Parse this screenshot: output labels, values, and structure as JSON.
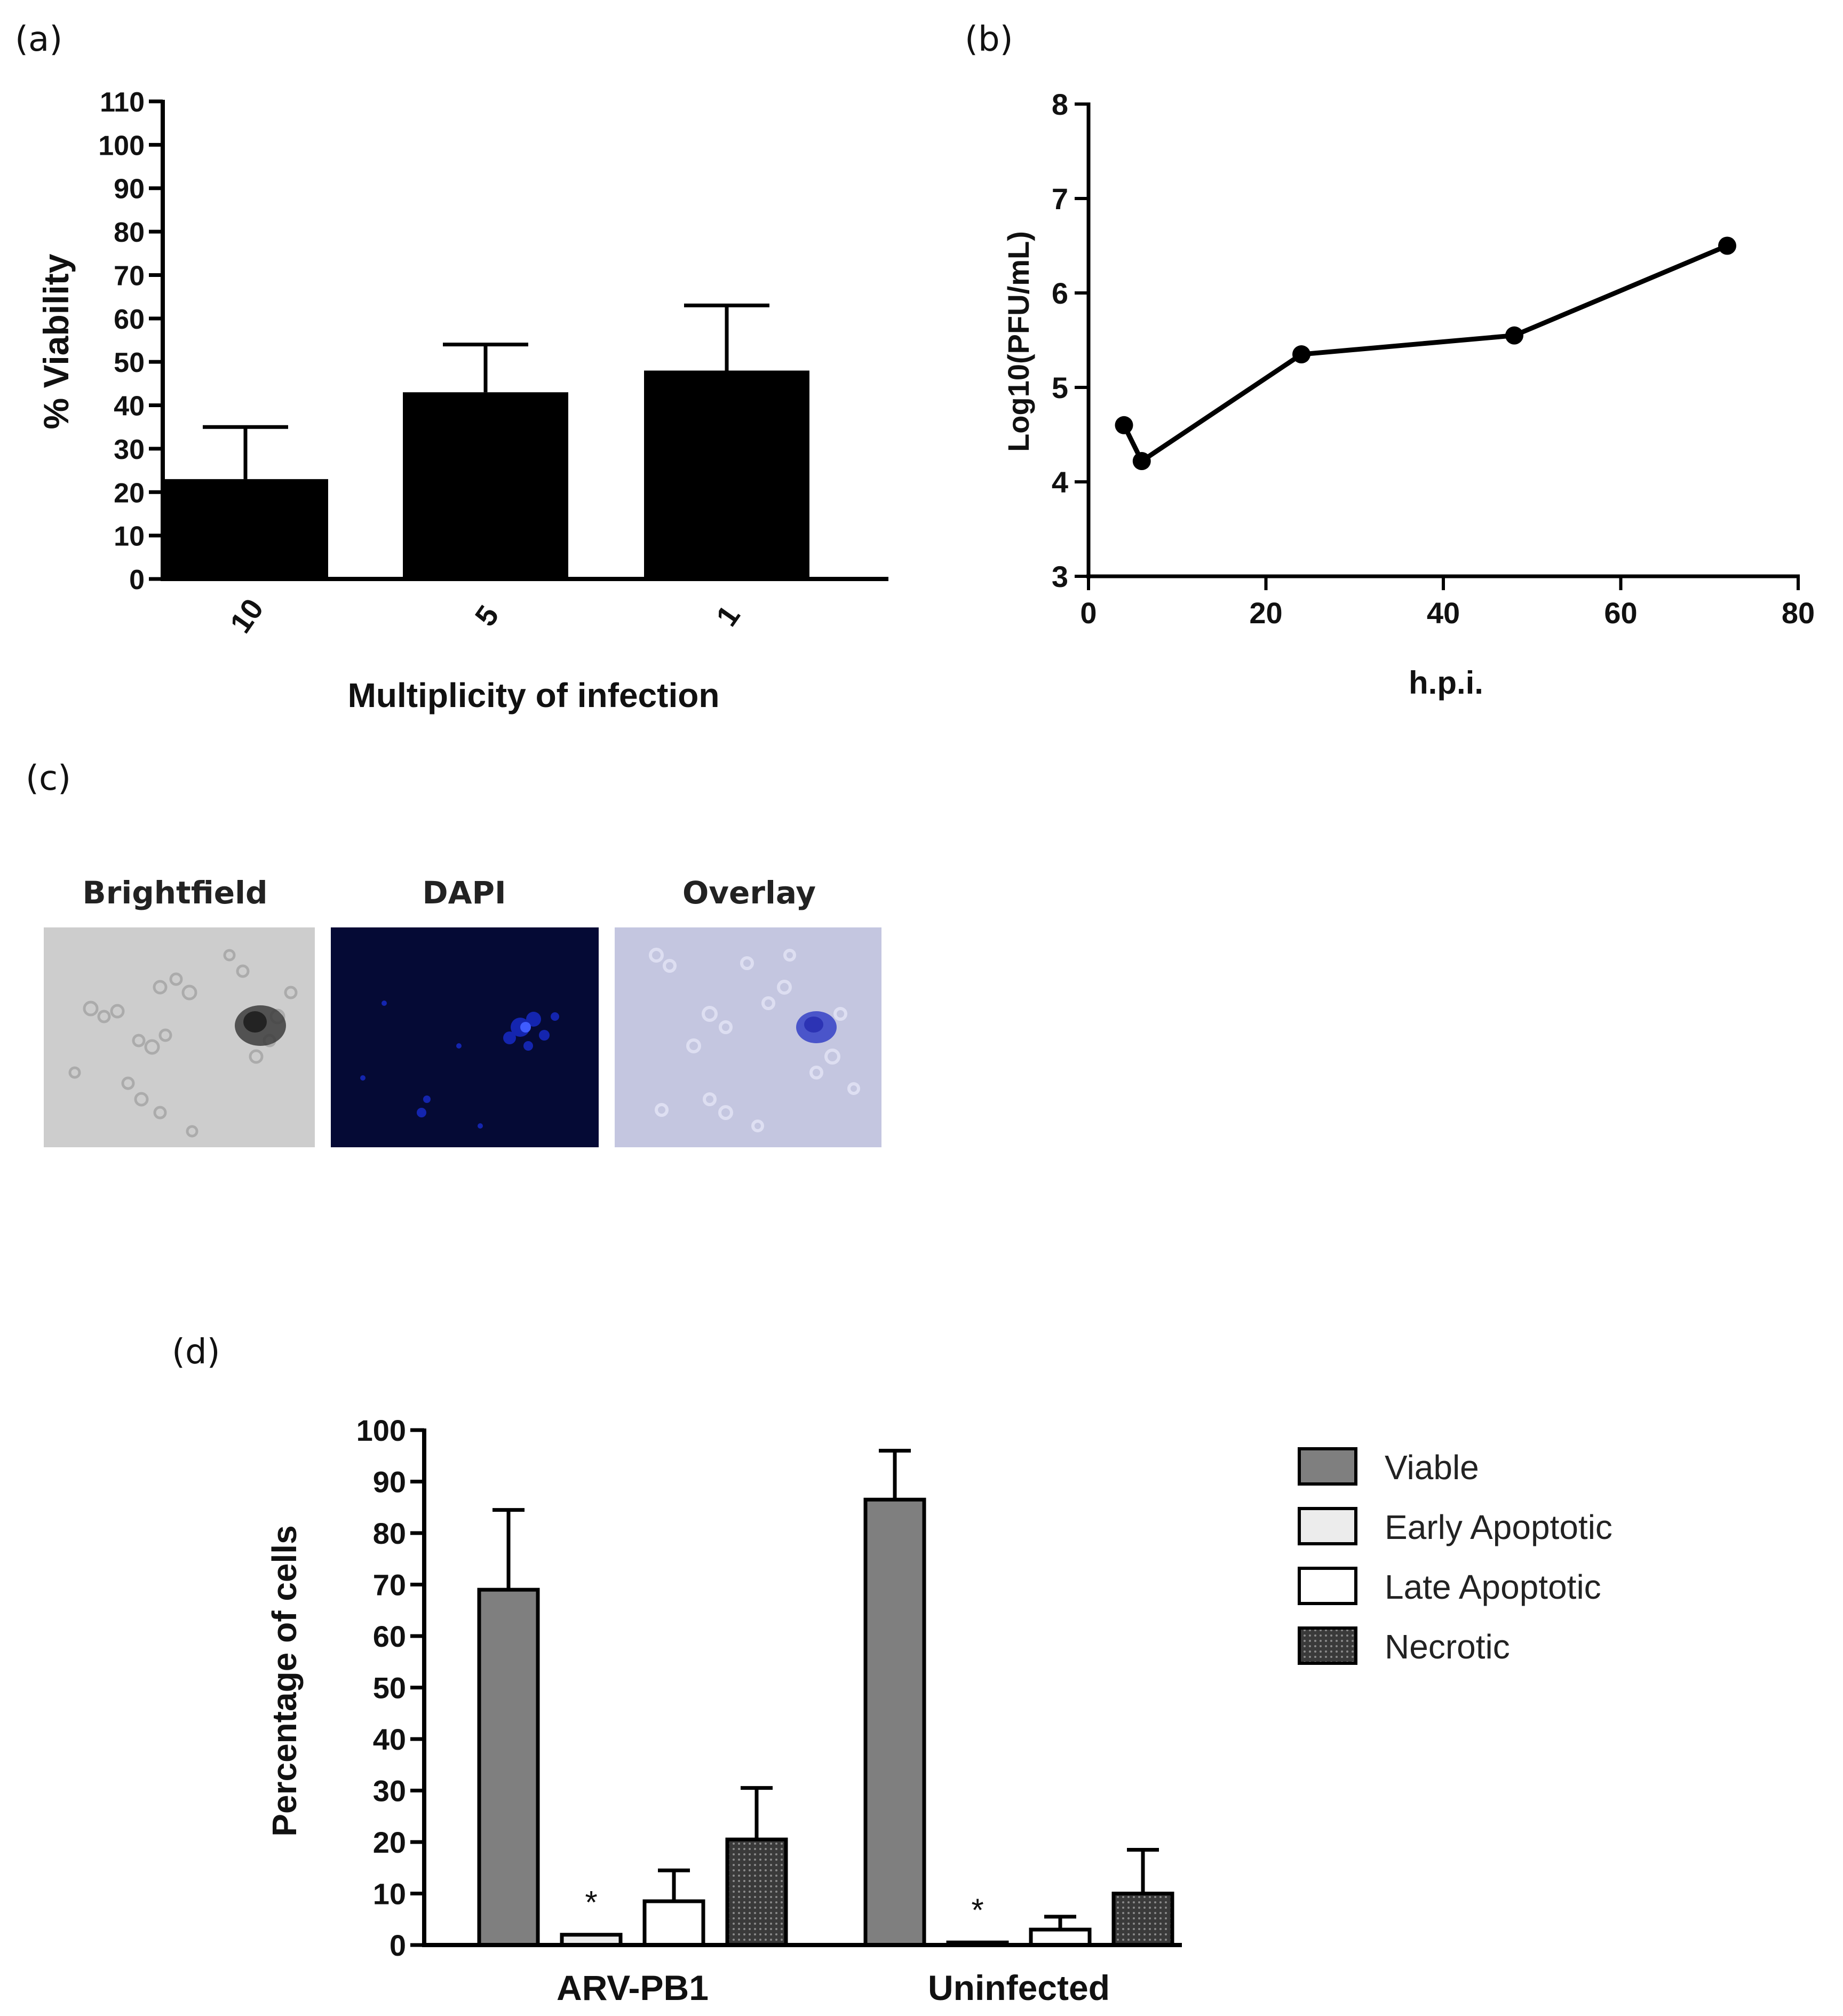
{
  "panel_labels": {
    "a": "(a)",
    "b": "(b)",
    "c": "(c)",
    "d": "(d)"
  },
  "microscopy": {
    "titles": [
      "Brightfield",
      "DAPI",
      "Overlay"
    ]
  },
  "colors": {
    "bar_black": "#000000",
    "viable_gray": "#7f7f7f",
    "early_fill": "#ececec",
    "late_fill": "#ffffff",
    "necrotic_fill": "#3a3a3a",
    "brightfield_bg": "#c9c9c9",
    "dapi_bg": "#050b3a",
    "overlay_bg": "#c7c9e2"
  },
  "chart_data": [
    {
      "id": "a",
      "type": "bar",
      "title": "",
      "xlabel": "Multiplicity of infection",
      "ylabel": "% Viability",
      "categories": [
        "10",
        "5",
        "1"
      ],
      "values": [
        23,
        43,
        48
      ],
      "error_plus": [
        12,
        11,
        15
      ],
      "ylim": [
        0,
        110
      ],
      "yticks": [
        0,
        10,
        20,
        30,
        40,
        50,
        60,
        70,
        80,
        90,
        100,
        110
      ],
      "grid": false
    },
    {
      "id": "b",
      "type": "line",
      "title": "",
      "xlabel": "h.p.i.",
      "ylabel": "Log10(PFU/mL)",
      "x": [
        4,
        6,
        24,
        48,
        72
      ],
      "y": [
        4.6,
        4.22,
        5.35,
        5.55,
        6.5
      ],
      "xlim": [
        0,
        80
      ],
      "ylim": [
        3,
        8
      ],
      "xticks": [
        0,
        20,
        40,
        60,
        80
      ],
      "yticks": [
        3,
        4,
        5,
        6,
        7,
        8
      ],
      "grid": false
    },
    {
      "id": "d",
      "type": "bar",
      "title": "",
      "xlabel": "",
      "ylabel": "Percentage of cells",
      "categories": [
        "ARV-PB1",
        "Uninfected"
      ],
      "series": [
        {
          "name": "Viable",
          "values": [
            69,
            86.5
          ],
          "error_plus": [
            15.5,
            9.5
          ]
        },
        {
          "name": "Early Apoptotic",
          "values": [
            2,
            0.5
          ],
          "error_plus": [
            0,
            0
          ]
        },
        {
          "name": "Late Apoptotic",
          "values": [
            8.5,
            3
          ],
          "error_plus": [
            6,
            2.5
          ]
        },
        {
          "name": "Necrotic",
          "values": [
            20.5,
            10
          ],
          "error_plus": [
            10,
            8.5
          ]
        }
      ],
      "annotations": [
        "*",
        "*"
      ],
      "ylim": [
        0,
        100
      ],
      "yticks": [
        0,
        10,
        20,
        30,
        40,
        50,
        60,
        70,
        80,
        90,
        100
      ],
      "legend_position": "right",
      "grid": false
    }
  ]
}
